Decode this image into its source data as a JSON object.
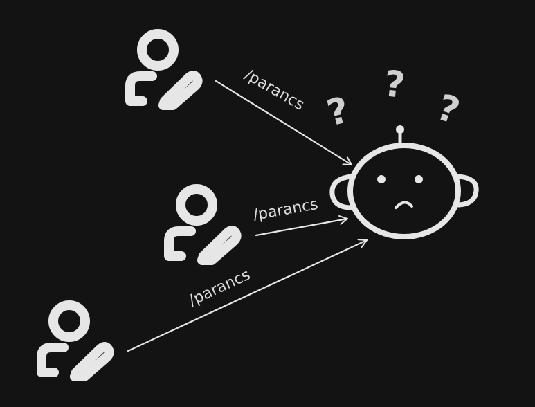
{
  "diagram": {
    "background": "#131313",
    "stroke_color": "#e6e6e6",
    "arrow_labels": [
      "/parancs",
      "/parancs",
      "/parancs"
    ],
    "question_marks": [
      "?",
      "?",
      "?"
    ],
    "icons": {
      "user": "user-edit-icon",
      "robot": "robot-head-icon"
    }
  }
}
